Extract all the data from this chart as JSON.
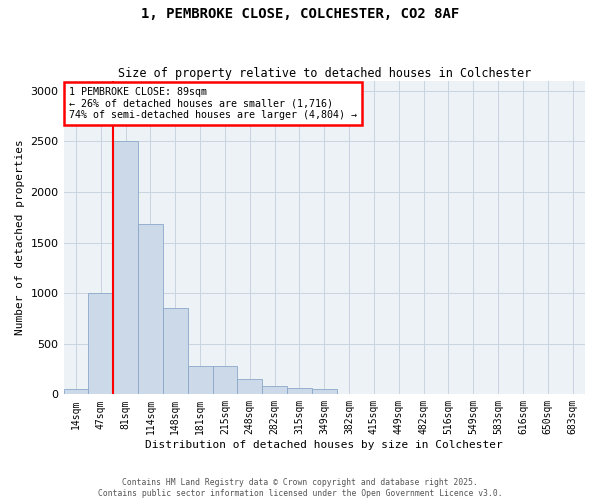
{
  "title_line1": "1, PEMBROKE CLOSE, COLCHESTER, CO2 8AF",
  "title_line2": "Size of property relative to detached houses in Colchester",
  "xlabel": "Distribution of detached houses by size in Colchester",
  "ylabel": "Number of detached properties",
  "categories": [
    "14sqm",
    "47sqm",
    "81sqm",
    "114sqm",
    "148sqm",
    "181sqm",
    "215sqm",
    "248sqm",
    "282sqm",
    "315sqm",
    "349sqm",
    "382sqm",
    "415sqm",
    "449sqm",
    "482sqm",
    "516sqm",
    "549sqm",
    "583sqm",
    "616sqm",
    "650sqm",
    "683sqm"
  ],
  "values": [
    55,
    1000,
    2500,
    1680,
    850,
    280,
    280,
    150,
    80,
    65,
    55,
    0,
    0,
    0,
    0,
    0,
    0,
    0,
    0,
    0,
    0
  ],
  "bar_color": "#ccd9e8",
  "bar_edge_color": "#8ba8c8",
  "grid_color": "#c8d4e0",
  "background_color": "#edf2f7",
  "annotation_text_line1": "1 PEMBROKE CLOSE: 89sqm",
  "annotation_text_line2": "← 26% of detached houses are smaller (1,716)",
  "annotation_text_line3": "74% of semi-detached houses are larger (4,804) →",
  "red_line_bar_index": 2,
  "ylim": [
    0,
    3100
  ],
  "yticks": [
    0,
    500,
    1000,
    1500,
    2000,
    2500,
    3000
  ],
  "footer_line1": "Contains HM Land Registry data © Crown copyright and database right 2025.",
  "footer_line2": "Contains public sector information licensed under the Open Government Licence v3.0."
}
